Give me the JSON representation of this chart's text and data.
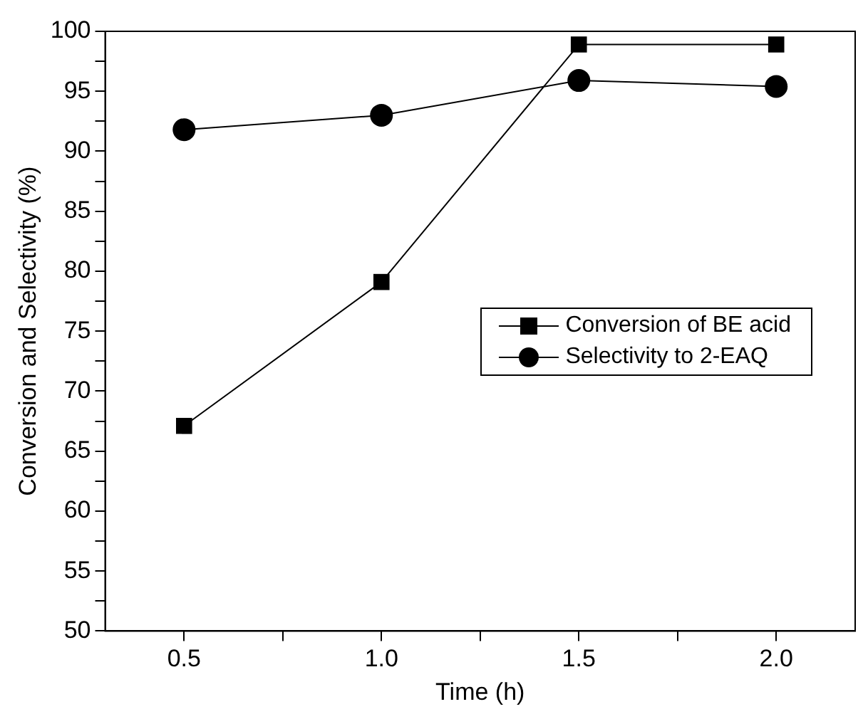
{
  "chart_data": {
    "type": "line",
    "xlabel": "Time (h)",
    "ylabel": "Conversion and Selectivity (%)",
    "x": [
      0.5,
      1.0,
      1.5,
      2.0
    ],
    "series": [
      {
        "name": "Conversion of BE acid",
        "color": "#000000",
        "marker": "square",
        "values": [
          67.1,
          79.1,
          98.9,
          98.9
        ]
      },
      {
        "name": "Selectivity to 2-EAQ",
        "color": "#000000",
        "marker": "circle",
        "values": [
          91.8,
          93.0,
          95.9,
          95.4
        ]
      }
    ],
    "xlim": [
      0.3,
      2.2
    ],
    "xticks": [
      {
        "value": 0.5,
        "label": "0.5"
      },
      {
        "value": 0.75,
        "label": null
      },
      {
        "value": 1.0,
        "label": "1.0"
      },
      {
        "value": 1.25,
        "label": null
      },
      {
        "value": 1.5,
        "label": "1.5"
      },
      {
        "value": 1.75,
        "label": null
      },
      {
        "value": 2.0,
        "label": "2.0"
      }
    ],
    "ylim": [
      50,
      100
    ],
    "yticks": [
      50,
      {
        "value": 52.5,
        "label": null
      },
      55,
      {
        "value": 57.5,
        "label": null
      },
      60,
      {
        "value": 62.5,
        "label": null
      },
      65,
      {
        "value": 67.5,
        "label": null
      },
      70,
      {
        "value": 72.5,
        "label": null
      },
      75,
      {
        "value": 77.5,
        "label": null
      },
      80,
      {
        "value": 82.5,
        "label": null
      },
      85,
      {
        "value": 87.5,
        "label": null
      },
      90,
      {
        "value": 92.5,
        "label": null
      },
      95,
      {
        "value": 97.5,
        "label": null
      },
      100
    ],
    "grid": false,
    "legend": "right",
    "line_style": "solid"
  }
}
